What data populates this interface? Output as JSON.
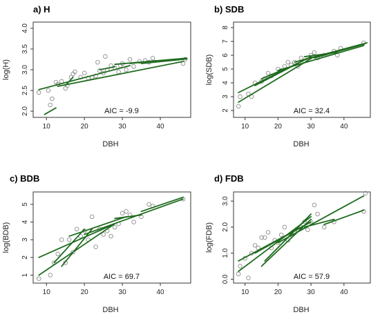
{
  "colors": {
    "line": "#1e6b1e",
    "point": "#8c8c8c",
    "axis": "#333333"
  },
  "chart_data": [
    {
      "type": "scatter",
      "title": "a) H",
      "xlabel": "DBH",
      "ylabel": "log(H)",
      "aic": "AIC = -9.9",
      "xlim": [
        6.5,
        48
      ],
      "ylim": [
        1.85,
        4.15
      ],
      "xticks": [
        10,
        20,
        30,
        40
      ],
      "yticks": [
        2.0,
        2.5,
        3.0,
        3.5,
        4.0
      ],
      "ytick_labels": [
        "2.0",
        "2.5",
        "3.0",
        "3.5",
        "4.0"
      ],
      "points": [
        [
          8.0,
          2.45
        ],
        [
          10.5,
          2.5
        ],
        [
          11.0,
          2.15
        ],
        [
          11.5,
          2.3
        ],
        [
          12.5,
          2.7
        ],
        [
          13,
          2.65
        ],
        [
          14,
          2.72
        ],
        [
          15,
          2.55
        ],
        [
          15.5,
          2.62
        ],
        [
          16.5,
          2.82
        ],
        [
          17,
          2.9
        ],
        [
          17.5,
          2.95
        ],
        [
          19,
          2.82
        ],
        [
          20,
          2.92
        ],
        [
          21,
          2.8
        ],
        [
          22,
          2.82
        ],
        [
          23,
          2.85
        ],
        [
          23.5,
          3.18
        ],
        [
          24,
          2.98
        ],
        [
          25,
          2.92
        ],
        [
          25.5,
          3.32
        ],
        [
          26,
          3.0
        ],
        [
          27,
          3.1
        ],
        [
          28,
          3.05
        ],
        [
          29,
          2.95
        ],
        [
          29.5,
          3.1
        ],
        [
          30,
          3.15
        ],
        [
          31,
          3.0
        ],
        [
          32,
          3.25
        ],
        [
          33,
          3.08
        ],
        [
          34.5,
          3.2
        ],
        [
          36,
          3.22
        ],
        [
          37,
          3.18
        ],
        [
          38,
          3.28
        ],
        [
          46,
          3.15
        ],
        [
          46.5,
          3.25
        ]
      ],
      "fit_lines": [
        [
          [
            9.5,
            1.92
          ],
          [
            12.5,
            2.08
          ]
        ],
        [
          [
            8,
            2.52
          ],
          [
            32,
            3.1
          ]
        ],
        [
          [
            13,
            2.6
          ],
          [
            46,
            3.2
          ]
        ],
        [
          [
            15,
            2.62
          ],
          [
            17,
            2.82
          ]
        ],
        [
          [
            24,
            3.0
          ],
          [
            28,
            3.07
          ]
        ],
        [
          [
            28,
            3.13
          ],
          [
            47,
            3.28
          ]
        ],
        [
          [
            32,
            3.15
          ],
          [
            39,
            3.22
          ]
        ],
        [
          [
            35,
            3.15
          ],
          [
            47,
            3.26
          ]
        ]
      ]
    },
    {
      "type": "scatter",
      "title": "b) SDB",
      "xlabel": "DBH",
      "ylabel": "log(SDB)",
      "aic": "AIC = 32.4",
      "xlim": [
        6.5,
        48
      ],
      "ylim": [
        1.5,
        8.4
      ],
      "xticks": [
        10,
        20,
        30,
        40
      ],
      "yticks": [
        2,
        3,
        4,
        5,
        6,
        7,
        8
      ],
      "ytick_labels": [
        "2",
        "3",
        "4",
        "5",
        "6",
        "7",
        "8"
      ],
      "points": [
        [
          8,
          2.3
        ],
        [
          8.5,
          3.0
        ],
        [
          11,
          3.2
        ],
        [
          12,
          3.0
        ],
        [
          13,
          4.0
        ],
        [
          15,
          4.1
        ],
        [
          16,
          4.3
        ],
        [
          17,
          4.7
        ],
        [
          18,
          4.5
        ],
        [
          20,
          5.0
        ],
        [
          21,
          4.9
        ],
        [
          22,
          5.2
        ],
        [
          23,
          5.5
        ],
        [
          24,
          5.3
        ],
        [
          25,
          5.5
        ],
        [
          26,
          5.2
        ],
        [
          27,
          5.8
        ],
        [
          28,
          5.6
        ],
        [
          29,
          5.8
        ],
        [
          30,
          6.0
        ],
        [
          31,
          6.2
        ],
        [
          32,
          5.8
        ],
        [
          34,
          6.0
        ],
        [
          37,
          6.3
        ],
        [
          38,
          6.0
        ],
        [
          39,
          6.5
        ],
        [
          46,
          6.9
        ]
      ],
      "fit_lines": [
        [
          [
            8,
            2.6
          ],
          [
            31,
            5.9
          ]
        ],
        [
          [
            8,
            3.3
          ],
          [
            30,
            5.9
          ]
        ],
        [
          [
            13,
            3.8
          ],
          [
            30,
            5.9
          ]
        ],
        [
          [
            15,
            4.3
          ],
          [
            22,
            5.0
          ]
        ],
        [
          [
            20,
            4.9
          ],
          [
            46,
            6.7
          ]
        ],
        [
          [
            25,
            5.5
          ],
          [
            47,
            6.9
          ]
        ],
        [
          [
            28,
            5.9
          ],
          [
            38,
            6.2
          ]
        ],
        [
          [
            31,
            5.8
          ],
          [
            46,
            6.8
          ]
        ]
      ]
    },
    {
      "type": "scatter",
      "title": "c) BDB",
      "xlabel": "DBH",
      "ylabel": "log(BDB)",
      "aic": "AIC = 69.7",
      "xlim": [
        6.5,
        48
      ],
      "ylim": [
        0.55,
        5.7
      ],
      "xticks": [
        10,
        20,
        30,
        40
      ],
      "yticks": [
        1,
        2,
        3,
        4,
        5
      ],
      "ytick_labels": [
        "1",
        "2",
        "3",
        "4",
        "5"
      ],
      "points": [
        [
          8,
          0.8
        ],
        [
          11,
          1.0
        ],
        [
          12,
          1.7
        ],
        [
          13,
          2.2
        ],
        [
          14,
          3.0
        ],
        [
          15,
          1.7
        ],
        [
          16,
          3.0
        ],
        [
          17,
          2.3
        ],
        [
          18,
          3.6
        ],
        [
          19,
          3.2
        ],
        [
          20,
          3.5
        ],
        [
          21,
          3.0
        ],
        [
          22,
          4.3
        ],
        [
          23,
          2.6
        ],
        [
          24,
          3.6
        ],
        [
          25,
          3.3
        ],
        [
          26,
          3.5
        ],
        [
          27,
          3.2
        ],
        [
          28,
          3.7
        ],
        [
          29,
          3.9
        ],
        [
          30,
          4.5
        ],
        [
          31,
          4.6
        ],
        [
          32,
          4.4
        ],
        [
          33,
          4.0
        ],
        [
          35,
          4.3
        ],
        [
          37,
          5.0
        ],
        [
          38,
          4.9
        ],
        [
          46,
          5.3
        ]
      ],
      "fit_lines": [
        [
          [
            8,
            2.0
          ],
          [
            28,
            3.9
          ]
        ],
        [
          [
            8,
            1.0
          ],
          [
            28,
            3.9
          ]
        ],
        [
          [
            12,
            1.7
          ],
          [
            20,
            3.6
          ]
        ],
        [
          [
            14,
            1.5
          ],
          [
            22,
            3.6
          ]
        ],
        [
          [
            16,
            3.2
          ],
          [
            31,
            4.3
          ]
        ],
        [
          [
            20,
            3.3
          ],
          [
            46,
            5.3
          ]
        ],
        [
          [
            28,
            4.2
          ],
          [
            35,
            4.4
          ]
        ],
        [
          [
            35,
            4.6
          ],
          [
            46,
            5.4
          ]
        ]
      ]
    },
    {
      "type": "scatter",
      "title": "d) FDB",
      "xlabel": "DBH",
      "ylabel": "log(FDB)",
      "aic": "AIC = 57.9",
      "xlim": [
        6.5,
        48
      ],
      "ylim": [
        -0.15,
        3.35
      ],
      "xticks": [
        10,
        20,
        30,
        40
      ],
      "yticks": [
        0.0,
        1.0,
        2.0,
        3.0
      ],
      "ytick_labels": [
        "0.0",
        "1.0",
        "2.0",
        "3.0"
      ],
      "points": [
        [
          8,
          0.2
        ],
        [
          8.5,
          0.5
        ],
        [
          10,
          0.8
        ],
        [
          11,
          0.05
        ],
        [
          12,
          1.0
        ],
        [
          13,
          1.3
        ],
        [
          14,
          1.2
        ],
        [
          15,
          1.6
        ],
        [
          16,
          1.6
        ],
        [
          17,
          1.8
        ],
        [
          18,
          1.2
        ],
        [
          19,
          1.5
        ],
        [
          20,
          1.4
        ],
        [
          21,
          1.7
        ],
        [
          22,
          2.0
        ],
        [
          23,
          1.5
        ],
        [
          24,
          1.7
        ],
        [
          25,
          1.8
        ],
        [
          26,
          1.9
        ],
        [
          27,
          2.0
        ],
        [
          28,
          2.2
        ],
        [
          29,
          1.9
        ],
        [
          30,
          2.2
        ],
        [
          31,
          2.85
        ],
        [
          32,
          2.5
        ],
        [
          34,
          2.0
        ],
        [
          37,
          2.2
        ],
        [
          46,
          2.6
        ],
        [
          46.5,
          3.3
        ]
      ],
      "fit_lines": [
        [
          [
            8,
            0.3
          ],
          [
            30,
            2.4
          ]
        ],
        [
          [
            8,
            0.7
          ],
          [
            30,
            2.2
          ]
        ],
        [
          [
            13,
            1.0
          ],
          [
            30,
            2.2
          ]
        ],
        [
          [
            15,
            0.5
          ],
          [
            30,
            2.3
          ]
        ],
        [
          [
            16,
            0.7
          ],
          [
            30,
            2.5
          ]
        ],
        [
          [
            20,
            1.4
          ],
          [
            46,
            3.2
          ]
        ],
        [
          [
            28,
            2.0
          ],
          [
            37,
            2.3
          ]
        ],
        [
          [
            34,
            2.1
          ],
          [
            46,
            2.65
          ]
        ]
      ]
    }
  ]
}
